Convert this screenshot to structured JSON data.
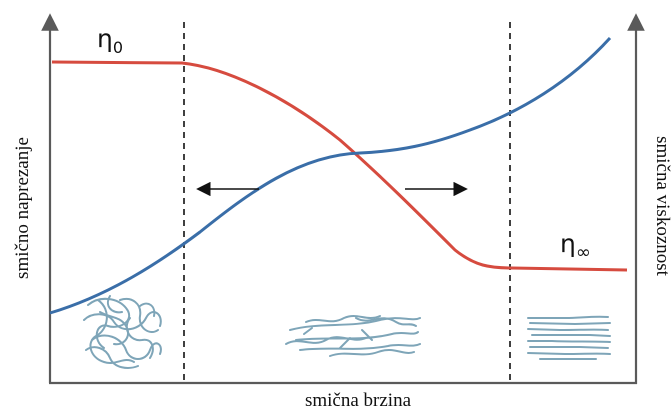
{
  "labels": {
    "x_axis": "smična brzina",
    "y_axis_left": "smično naprezanje",
    "y_axis_right": "smična viskoznost",
    "eta_zero": "η",
    "eta_zero_sub": "0",
    "eta_infinity": "η",
    "eta_infinity_sub": "∞"
  },
  "colors": {
    "axis": "#5a5a5a",
    "viscosity_curve": "#d64b3f",
    "stress_curve": "#3a6ea8",
    "fibers": "#7ea5b8",
    "arrow": "#111111"
  },
  "regions": [
    {
      "name": "entangled",
      "icon": "tangled-fibers-icon"
    },
    {
      "name": "aligning",
      "icon": "partially-aligned-fibers-icon"
    },
    {
      "name": "aligned",
      "icon": "aligned-fibers-icon"
    }
  ]
}
